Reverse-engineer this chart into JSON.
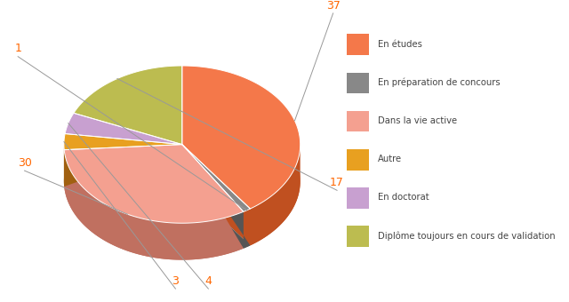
{
  "labels": [
    "En études",
    "En préparation de concours",
    "Dans la vie active",
    "Autre",
    "En doctorat",
    "Diplôme toujours en cours de validation"
  ],
  "values": [
    37,
    1,
    30,
    3,
    4,
    17
  ],
  "colors": [
    "#F4784A",
    "#888888",
    "#F4A090",
    "#E8A020",
    "#C8A0D0",
    "#BCBC50"
  ],
  "side_colors": [
    "#C05020",
    "#555555",
    "#C07060",
    "#A06010",
    "#907090",
    "#808020"
  ],
  "label_values": [
    "37",
    "1",
    "30",
    "3",
    "4",
    "17"
  ],
  "legend_labels": [
    "En études",
    "En préparation de concours",
    "Dans la vie active",
    "Autre",
    "En doctorat",
    "Diplôme toujours en cours de validation"
  ],
  "label_color": "#FF6600",
  "line_color": "#999999"
}
